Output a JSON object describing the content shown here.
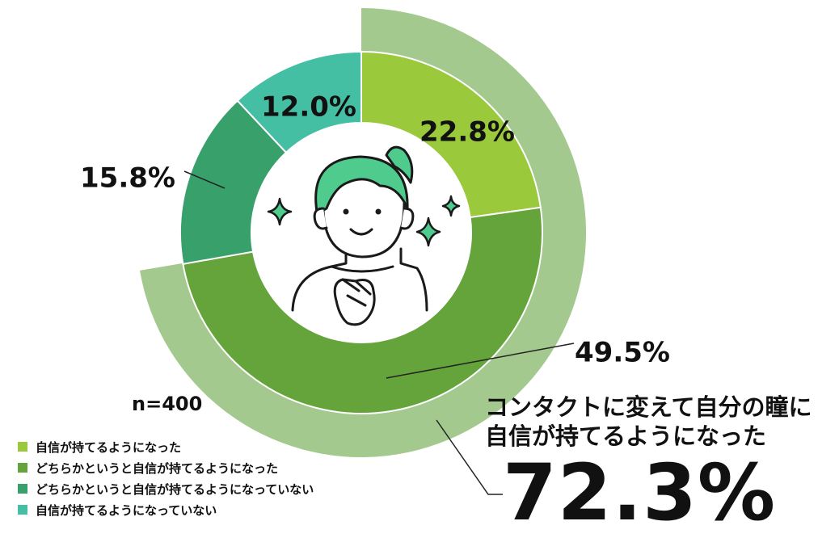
{
  "chart_data": {
    "type": "donut",
    "title": "",
    "sample": "n=400",
    "series": [
      {
        "name": "自信が持てるようになった",
        "value": 22.8,
        "label": "22.8%",
        "color": "#9bc93c"
      },
      {
        "name": "どちらかというと自信が持てるようになった",
        "value": 49.5,
        "label": "49.5%",
        "color": "#64a43a"
      },
      {
        "name": "どちらかというと自信が持てるようになっていない",
        "value": 15.8,
        "label": "15.8%",
        "color": "#38a06b"
      },
      {
        "name": "自信が持てるようになっていない",
        "value": 12.0,
        "label": "12.0%",
        "color": "#45bfa4"
      }
    ],
    "outer_ring": {
      "value": 72.3,
      "color": "#a4c98e"
    }
  },
  "headline": {
    "line1": "コンタクトに変えて自分の瞳に",
    "line2": "自信が持てるようになった",
    "value": "72.3%"
  },
  "illustration": "smiling-woman-with-sparkles"
}
